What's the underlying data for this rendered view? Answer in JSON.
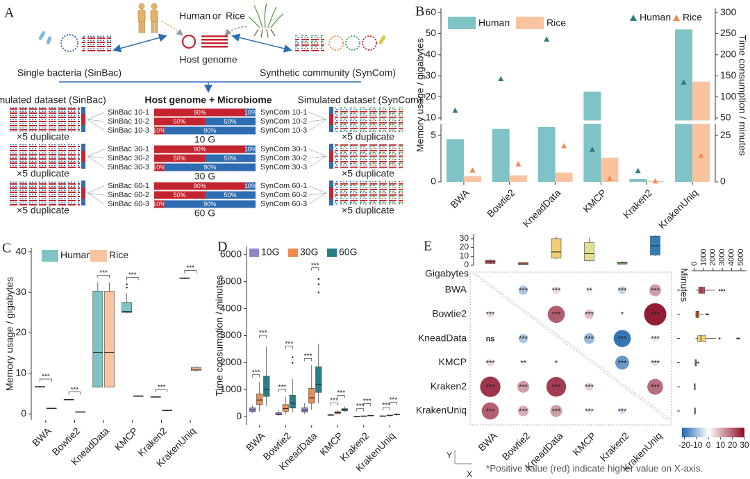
{
  "panel_a": {
    "label": "A",
    "host_title": {
      "human": "Human",
      "or": "or",
      "rice": "Rice"
    },
    "host_genome": "Host genome",
    "sinbac": "Single bacteria (SinBac)",
    "syncom": "Synthetic community (SynCom)",
    "left_title": "Simulated dataset (SinBac)",
    "center_title": "Host genome + Microbiome",
    "right_title": "Simulated dataset  (SynCom)",
    "groups": [
      {
        "size": "10 G",
        "left_note": "×5 duplicate",
        "right_note": "×5 duplicate",
        "rows": [
          {
            "sinbac": "SinBac 10-1",
            "syncom": "SynCom 10-1",
            "values": [
              90,
              10
            ],
            "value_labels": [
              "90%",
              "10%"
            ]
          },
          {
            "sinbac": "SinBac 10-2",
            "syncom": "SynCom 10-2",
            "values": [
              50,
              50
            ],
            "value_labels": [
              "50%",
              "50%"
            ]
          },
          {
            "sinbac": "SinBac 10-3",
            "syncom": "SynCom 10-3",
            "values": [
              10,
              90
            ],
            "value_labels": [
              "10%",
              "90%"
            ]
          }
        ]
      },
      {
        "size": "30 G",
        "left_note": "×5 duplicate",
        "right_note": "×5 duplicate",
        "rows": [
          {
            "sinbac": "SinBac 30-1",
            "syncom": "SynCom 30-1",
            "values": [
              90,
              10
            ],
            "value_labels": [
              "90%",
              "10%"
            ]
          },
          {
            "sinbac": "SinBac 30-2",
            "syncom": "SynCom 30-2",
            "values": [
              50,
              50
            ],
            "value_labels": [
              "50%",
              "50%"
            ]
          },
          {
            "sinbac": "SinBac 30-3",
            "syncom": "SynCom 30-3",
            "values": [
              10,
              90
            ],
            "value_labels": [
              "10%",
              "90%"
            ]
          }
        ]
      },
      {
        "size": "60 G",
        "left_note": "×5 duplicate",
        "right_note": "×5 duplicate",
        "rows": [
          {
            "sinbac": "SinBac 60-1",
            "syncom": "SynCom 60-1",
            "values": [
              90,
              10
            ],
            "value_labels": [
              "90%",
              "10%"
            ]
          },
          {
            "sinbac": "SinBac 60-2",
            "syncom": "SynCom 60-2",
            "values": [
              50,
              50
            ],
            "value_labels": [
              "50%",
              "50%"
            ]
          },
          {
            "sinbac": "SinBac 60-3",
            "syncom": "SynCom 60-3",
            "values": [
              10,
              90
            ],
            "value_labels": [
              "10%",
              "90%"
            ]
          }
        ]
      }
    ]
  },
  "chart_data": [
    {
      "panel": "B",
      "type": "bar",
      "categories": [
        "BWA",
        "Bowtie2",
        "KneadData",
        "KMCP",
        "Kraken2",
        "KrakenUniq"
      ],
      "ylabel": "Memory usage / gigabytes",
      "y2label": "Time consumption / minutes",
      "ylim": [
        0,
        62
      ],
      "y_break": [
        6.2,
        9
      ],
      "yticks": [
        0,
        5,
        10,
        20,
        30,
        40,
        50,
        60
      ],
      "y2lim": [
        0,
        310
      ],
      "y2_break": [
        31,
        45
      ],
      "y2ticks": [
        0,
        25,
        50,
        100,
        150,
        200,
        250,
        300
      ],
      "series": [
        {
          "name": "Human",
          "color": "#7fc3c7",
          "values": [
            4.6,
            5.7,
            5.9,
            22.5,
            0.3,
            52
          ]
        },
        {
          "name": "Rice",
          "color": "#f9c3a0",
          "values": [
            0.6,
            0.7,
            1.0,
            2.6,
            0.1,
            27.2
          ]
        },
        {
          "name": "Human",
          "color": "#2b7a83",
          "axis": "y2",
          "marker": "triangle",
          "values": [
            68,
            143,
            237,
            17.5,
            6,
            135
          ]
        },
        {
          "name": "Rice",
          "color": "#ef8a52",
          "axis": "y2",
          "marker": "triangle",
          "values": [
            6.3,
            9.7,
            19.4,
            1.9,
            0.4,
            14.2
          ]
        }
      ]
    },
    {
      "panel": "C",
      "type": "box",
      "categories": [
        "BWA",
        "Bowtie2",
        "KneadData",
        "KMCP",
        "Kraken2",
        "KrakenUniq"
      ],
      "ylabel": "Memory usage / gigabytes",
      "ylim": [
        -1.5,
        41
      ],
      "yticks": [
        0,
        10,
        20,
        30,
        40
      ],
      "series": [
        {
          "name": "Human",
          "color": "#7fc3c7",
          "boxes": [
            {
              "min": 6.5,
              "q1": 6.6,
              "median": 6.7,
              "q3": 6.8,
              "max": 6.9
            },
            {
              "min": 3.4,
              "q1": 3.5,
              "median": 3.55,
              "q3": 3.6,
              "max": 3.7
            },
            {
              "min": 6.5,
              "q1": 6.6,
              "median": 15.2,
              "q3": 30.3,
              "max": 32.5
            },
            {
              "min": 24.8,
              "q1": 25,
              "median": 25.3,
              "q3": 27.5,
              "max": 29.8,
              "outliers": [
                31.2,
                32
              ]
            },
            {
              "min": 4.1,
              "q1": 4.15,
              "median": 4.2,
              "q3": 4.25,
              "max": 4.3
            },
            {
              "min": 33.3,
              "q1": 33.4,
              "median": 33.5,
              "q3": 33.6,
              "max": 33.7
            }
          ]
        },
        {
          "name": "Rice",
          "color": "#f9c3a0",
          "boxes": [
            {
              "min": 1.3,
              "q1": 1.35,
              "median": 1.4,
              "q3": 1.45,
              "max": 1.5
            },
            {
              "min": 0.4,
              "q1": 0.45,
              "median": 0.5,
              "q3": 0.55,
              "max": 0.6
            },
            {
              "min": 6.5,
              "q1": 6.6,
              "median": 15.2,
              "q3": 30.3,
              "max": 32.5
            },
            {
              "min": 4.2,
              "q1": 4.3,
              "median": 4.4,
              "q3": 4.5,
              "max": 4.6
            },
            {
              "min": 0.8,
              "q1": 0.85,
              "median": 0.9,
              "q3": 0.95,
              "max": 1.0
            },
            {
              "min": 10.3,
              "q1": 10.7,
              "median": 11,
              "q3": 11.5,
              "max": 11.8
            }
          ]
        }
      ],
      "significance": [
        [
          "***"
        ],
        [
          "***"
        ],
        [
          "***"
        ],
        [
          "***"
        ],
        [
          "***"
        ],
        [
          "***"
        ]
      ]
    },
    {
      "panel": "D",
      "type": "box",
      "categories": [
        "BWA",
        "Bowtie2",
        "KneadData",
        "KMCP",
        "Kraken2",
        "KrakenUniq"
      ],
      "ylabel": "Time consumption / minutes",
      "ylim": [
        -300,
        6300
      ],
      "yticks": [
        0,
        1000,
        2000,
        3000,
        4000,
        5000,
        6000
      ],
      "series": [
        {
          "name": "10G",
          "color": "#8d88c6",
          "boxes": [
            {
              "min": 130,
              "q1": 190,
              "median": 250,
              "q3": 330,
              "max": 420
            },
            {
              "min": 40,
              "q1": 70,
              "median": 100,
              "q3": 150,
              "max": 230
            },
            {
              "min": 110,
              "q1": 170,
              "median": 240,
              "q3": 330,
              "max": 500
            },
            {
              "min": 30,
              "q1": 50,
              "median": 60,
              "q3": 80,
              "max": 110
            },
            {
              "min": 5,
              "q1": 10,
              "median": 15,
              "q3": 20,
              "max": 30
            },
            {
              "min": 10,
              "q1": 20,
              "median": 25,
              "q3": 35,
              "max": 50
            }
          ]
        },
        {
          "name": "30G",
          "color": "#ef8a4e",
          "boxes": [
            {
              "min": 200,
              "q1": 450,
              "median": 620,
              "q3": 850,
              "max": 1300
            },
            {
              "min": 90,
              "q1": 200,
              "median": 300,
              "q3": 450,
              "max": 750
            },
            {
              "min": 250,
              "q1": 500,
              "median": 700,
              "q3": 1050,
              "max": 1900
            },
            {
              "min": 80,
              "q1": 120,
              "median": 150,
              "q3": 190,
              "max": 260
            },
            {
              "min": 10,
              "q1": 18,
              "median": 25,
              "q3": 32,
              "max": 45
            },
            {
              "min": 20,
              "q1": 40,
              "median": 50,
              "q3": 60,
              "max": 80
            }
          ]
        },
        {
          "name": "60G",
          "color": "#2a7f86",
          "boxes": [
            {
              "min": 400,
              "q1": 750,
              "median": 1000,
              "q3": 1500,
              "max": 2600
            },
            {
              "min": 150,
              "q1": 320,
              "median": 500,
              "q3": 800,
              "max": 1400,
              "outliers": [
                2000,
                2200
              ]
            },
            {
              "min": 500,
              "q1": 900,
              "median": 1200,
              "q3": 1850,
              "max": 2700,
              "outliers": [
                4600,
                4900,
                5100
              ]
            },
            {
              "min": 170,
              "q1": 220,
              "median": 260,
              "q3": 300,
              "max": 380
            },
            {
              "min": 20,
              "q1": 35,
              "median": 45,
              "q3": 55,
              "max": 75
            },
            {
              "min": 40,
              "q1": 70,
              "median": 85,
              "q3": 100,
              "max": 130
            }
          ]
        }
      ],
      "significance": [
        [
          "***",
          "***"
        ],
        [
          "***",
          "***"
        ],
        [
          "***",
          "***"
        ],
        [
          "***",
          "***"
        ],
        [
          "***",
          "***"
        ],
        [
          "***",
          "***"
        ]
      ]
    },
    {
      "panel": "E",
      "type": "corrplot",
      "categories": [
        "BWA",
        "Bowtie2",
        "KneadData",
        "KMCP",
        "Kraken2",
        "KrakenUniq"
      ],
      "colors": [
        "#c8475a",
        "#d96c4e",
        "#f2cf76",
        "#e3df8e",
        "#8ccf7c",
        "#2e7fb8"
      ],
      "matrix": [
        [
          null,
          -8,
          5,
          3,
          -6,
          12
        ],
        [
          4,
          null,
          20,
          8,
          1,
          28
        ],
        [
          0,
          -8,
          null,
          -10,
          -20,
          -3
        ],
        [
          5,
          -2,
          -1,
          null,
          -15,
          4
        ],
        [
          25,
          12,
          24,
          6,
          null,
          18
        ],
        [
          20,
          10,
          12,
          3,
          -4,
          null
        ]
      ],
      "matrix_labels": [
        [
          null,
          "***",
          "***",
          "**",
          "***",
          "***"
        ],
        [
          "***",
          null,
          "***",
          "***",
          "*",
          "***"
        ],
        [
          "ns",
          "***",
          null,
          "***",
          "***",
          "***"
        ],
        [
          "***",
          "**",
          "*",
          null,
          "***",
          "***"
        ],
        [
          "***",
          "***",
          "***",
          "***",
          null,
          "***"
        ],
        [
          "***",
          "***",
          "***",
          "***",
          "***",
          null
        ]
      ],
      "clim": [
        -22,
        30
      ],
      "cticks": [
        -20,
        -10,
        0,
        10,
        20,
        30
      ],
      "cmap": [
        "#2166ac",
        "#ffffff",
        "#8b0d26"
      ],
      "top_box": {
        "label": "Gigabytes",
        "ylim": [
          0,
          35.4
        ],
        "yticks": [
          0,
          10,
          20,
          30
        ],
        "boxes": [
          {
            "min": 1.3,
            "q1": 2,
            "median": 4,
            "q3": 5.5,
            "max": 6.8
          },
          {
            "min": 0.4,
            "q1": 0.6,
            "median": 1.5,
            "q3": 3,
            "max": 3.7
          },
          {
            "min": 6.5,
            "q1": 8,
            "median": 15,
            "q3": 30,
            "max": 32.5
          },
          {
            "min": 4.2,
            "q1": 5,
            "median": 13,
            "q3": 25.5,
            "max": 31
          },
          {
            "min": 0.8,
            "q1": 1,
            "median": 2.5,
            "q3": 3.5,
            "max": 4.3
          },
          {
            "min": 10.3,
            "q1": 11.5,
            "median": 22,
            "q3": 33,
            "max": 33.7
          }
        ]
      },
      "side_box": {
        "label": "Minutes",
        "xlim": [
          0,
          5600
        ],
        "xticks": [
          0,
          1000,
          2000,
          3000,
          4000,
          5000
        ],
        "boxes": [
          {
            "min": 130,
            "q1": 450,
            "median": 700,
            "q3": 1100,
            "max": 2200,
            "outliers": [
              2700,
              2950,
              3200
            ]
          },
          {
            "min": 40,
            "q1": 150,
            "median": 300,
            "q3": 500,
            "max": 1000,
            "outliers": [
              1300,
              1450
            ]
          },
          {
            "min": 110,
            "q1": 350,
            "median": 700,
            "q3": 1200,
            "max": 2300,
            "outliers": [
              2700,
              4600,
              4800
            ]
          },
          {
            "min": 30,
            "q1": 60,
            "median": 150,
            "q3": 220,
            "max": 350,
            "outliers": [
              420
            ]
          },
          {
            "min": 5,
            "q1": 15,
            "median": 25,
            "q3": 35,
            "max": 75
          },
          {
            "min": 10,
            "q1": 30,
            "median": 50,
            "q3": 80,
            "max": 130
          }
        ]
      },
      "axis_note": {
        "y": "Y",
        "x": "X"
      },
      "note": "*Positive value (red) indicate higher value on X-axis."
    }
  ]
}
